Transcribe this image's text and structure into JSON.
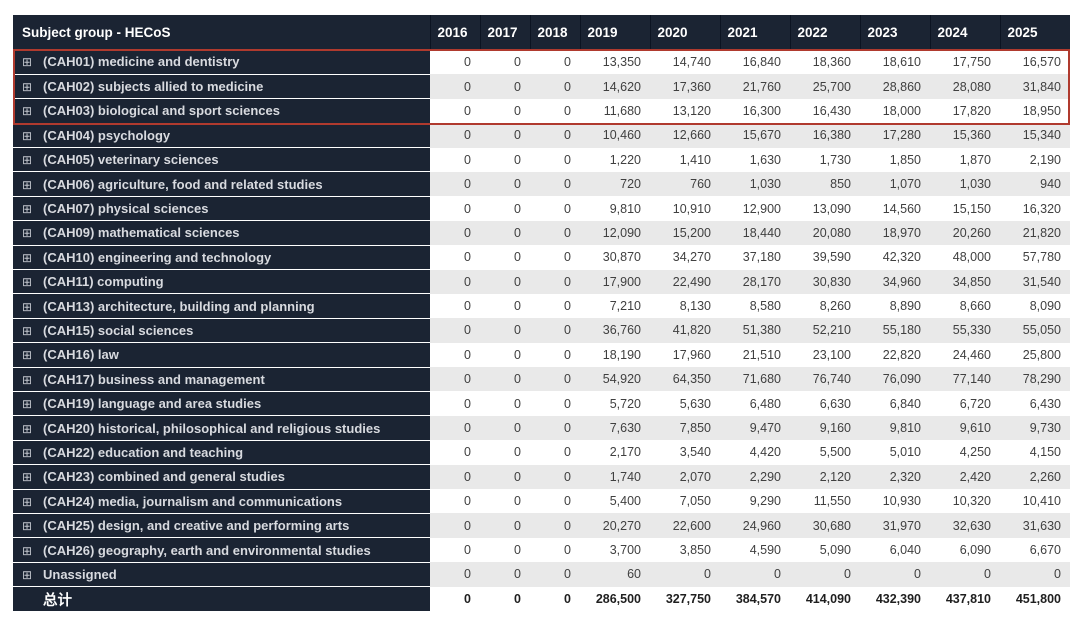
{
  "chart_data": {
    "type": "table",
    "columns": [
      "Subject group - HECoS",
      "2016",
      "2017",
      "2018",
      "2019",
      "2020",
      "2021",
      "2022",
      "2023",
      "2024",
      "2025"
    ],
    "rows": [
      {
        "label": "(CAH01) medicine and dentistry",
        "values": [
          0,
          0,
          0,
          13350,
          14740,
          16840,
          18360,
          18610,
          17750,
          16570
        ]
      },
      {
        "label": "(CAH02) subjects allied to medicine",
        "values": [
          0,
          0,
          0,
          14620,
          17360,
          21760,
          25700,
          28860,
          28080,
          31840
        ]
      },
      {
        "label": "(CAH03) biological and sport sciences",
        "values": [
          0,
          0,
          0,
          11680,
          13120,
          16300,
          16430,
          18000,
          17820,
          18950
        ]
      },
      {
        "label": "(CAH04) psychology",
        "values": [
          0,
          0,
          0,
          10460,
          12660,
          15670,
          16380,
          17280,
          15360,
          15340
        ]
      },
      {
        "label": "(CAH05) veterinary sciences",
        "values": [
          0,
          0,
          0,
          1220,
          1410,
          1630,
          1730,
          1850,
          1870,
          2190
        ]
      },
      {
        "label": "(CAH06) agriculture, food and related studies",
        "values": [
          0,
          0,
          0,
          720,
          760,
          1030,
          850,
          1070,
          1030,
          940
        ]
      },
      {
        "label": "(CAH07) physical sciences",
        "values": [
          0,
          0,
          0,
          9810,
          10910,
          12900,
          13090,
          14560,
          15150,
          16320
        ]
      },
      {
        "label": "(CAH09) mathematical sciences",
        "values": [
          0,
          0,
          0,
          12090,
          15200,
          18440,
          20080,
          18970,
          20260,
          21820
        ]
      },
      {
        "label": "(CAH10) engineering and technology",
        "values": [
          0,
          0,
          0,
          30870,
          34270,
          37180,
          39590,
          42320,
          48000,
          57780
        ]
      },
      {
        "label": "(CAH11) computing",
        "values": [
          0,
          0,
          0,
          17900,
          22490,
          28170,
          30830,
          34960,
          34850,
          31540
        ]
      },
      {
        "label": "(CAH13) architecture, building and planning",
        "values": [
          0,
          0,
          0,
          7210,
          8130,
          8580,
          8260,
          8890,
          8660,
          8090
        ]
      },
      {
        "label": "(CAH15) social sciences",
        "values": [
          0,
          0,
          0,
          36760,
          41820,
          51380,
          52210,
          55180,
          55330,
          55050
        ]
      },
      {
        "label": "(CAH16) law",
        "values": [
          0,
          0,
          0,
          18190,
          17960,
          21510,
          23100,
          22820,
          24460,
          25800
        ]
      },
      {
        "label": "(CAH17) business and management",
        "values": [
          0,
          0,
          0,
          54920,
          64350,
          71680,
          76740,
          76090,
          77140,
          78290
        ]
      },
      {
        "label": "(CAH19) language and area studies",
        "values": [
          0,
          0,
          0,
          5720,
          5630,
          6480,
          6630,
          6840,
          6720,
          6430
        ]
      },
      {
        "label": "(CAH20) historical, philosophical and religious studies",
        "values": [
          0,
          0,
          0,
          7630,
          7850,
          9470,
          9160,
          9810,
          9610,
          9730
        ]
      },
      {
        "label": "(CAH22) education and teaching",
        "values": [
          0,
          0,
          0,
          2170,
          3540,
          4420,
          5500,
          5010,
          4250,
          4150
        ]
      },
      {
        "label": "(CAH23) combined and general studies",
        "values": [
          0,
          0,
          0,
          1740,
          2070,
          2290,
          2120,
          2320,
          2420,
          2260
        ]
      },
      {
        "label": "(CAH24) media, journalism and communications",
        "values": [
          0,
          0,
          0,
          5400,
          7050,
          9290,
          11550,
          10930,
          10320,
          10410
        ]
      },
      {
        "label": "(CAH25) design, and creative and performing arts",
        "values": [
          0,
          0,
          0,
          20270,
          22600,
          24960,
          30680,
          31970,
          32630,
          31630
        ]
      },
      {
        "label": "(CAH26) geography, earth and environmental studies",
        "values": [
          0,
          0,
          0,
          3700,
          3850,
          4590,
          5090,
          6040,
          6090,
          6670
        ]
      },
      {
        "label": "Unassigned",
        "values": [
          0,
          0,
          0,
          60,
          0,
          0,
          0,
          0,
          0,
          0
        ]
      }
    ],
    "total_row": {
      "label": "总计",
      "values": [
        0,
        0,
        0,
        286500,
        327750,
        384570,
        414090,
        432390,
        437810,
        451800
      ]
    },
    "highlighted_row_labels": [
      "(CAH01) medicine and dentistry",
      "(CAH02) subjects allied to medicine",
      "(CAH03) biological and sport sciences"
    ]
  },
  "icons": {
    "expand_glyph": "⊞",
    "expand_name": "expand-plus-icon"
  },
  "colors": {
    "header_bg": "#1b2433",
    "row_alt_bg": "#e9e9e9",
    "row_bg": "#ffffff",
    "highlight_border": "#b03a2e",
    "header_text": "#ffffff",
    "row_label_text": "#d8dadf",
    "value_text": "#404040"
  }
}
